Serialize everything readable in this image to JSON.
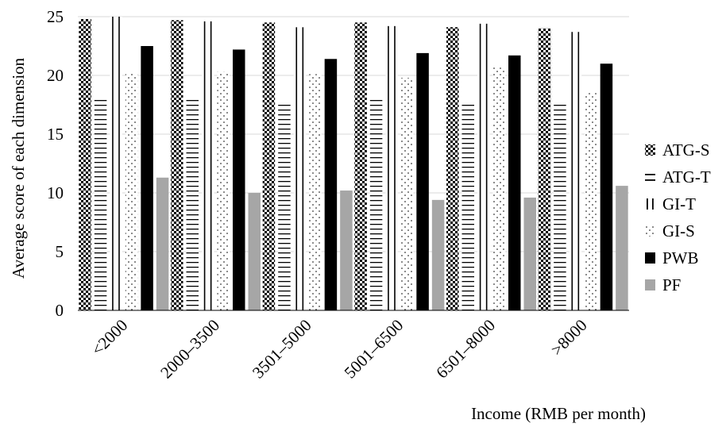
{
  "chart_data": {
    "type": "bar",
    "title": "",
    "xlabel": "Income (RMB per month)",
    "ylabel": "Average score of each dimension",
    "ylim": [
      0,
      25
    ],
    "yticks": [
      0,
      5,
      10,
      15,
      20,
      25
    ],
    "grid": true,
    "legend_position": "right",
    "categories": [
      "<2000",
      "2000–3500",
      "3501–5000",
      "5001–6500",
      "6501–8000",
      ">8000"
    ],
    "series": [
      {
        "name": "ATG-S",
        "pattern": "checker",
        "values": [
          24.8,
          24.7,
          24.5,
          24.5,
          24.1,
          24.0
        ]
      },
      {
        "name": "ATG-T",
        "pattern": "hlines",
        "values": [
          18.0,
          18.0,
          17.5,
          18.0,
          17.5,
          17.5
        ]
      },
      {
        "name": "GI-T",
        "pattern": "vlines",
        "values": [
          25.0,
          24.6,
          24.1,
          24.2,
          24.4,
          23.7
        ]
      },
      {
        "name": "GI-S",
        "pattern": "dots",
        "values": [
          20.2,
          20.3,
          20.1,
          19.8,
          20.7,
          18.5
        ]
      },
      {
        "name": "PWB",
        "pattern": "solid",
        "color": "#000000",
        "values": [
          22.5,
          22.2,
          21.4,
          21.9,
          21.7,
          21.0
        ]
      },
      {
        "name": "PF",
        "pattern": "solid",
        "color": "#a6a6a6",
        "values": [
          11.3,
          10.0,
          10.2,
          9.4,
          9.6,
          10.6
        ]
      }
    ]
  }
}
